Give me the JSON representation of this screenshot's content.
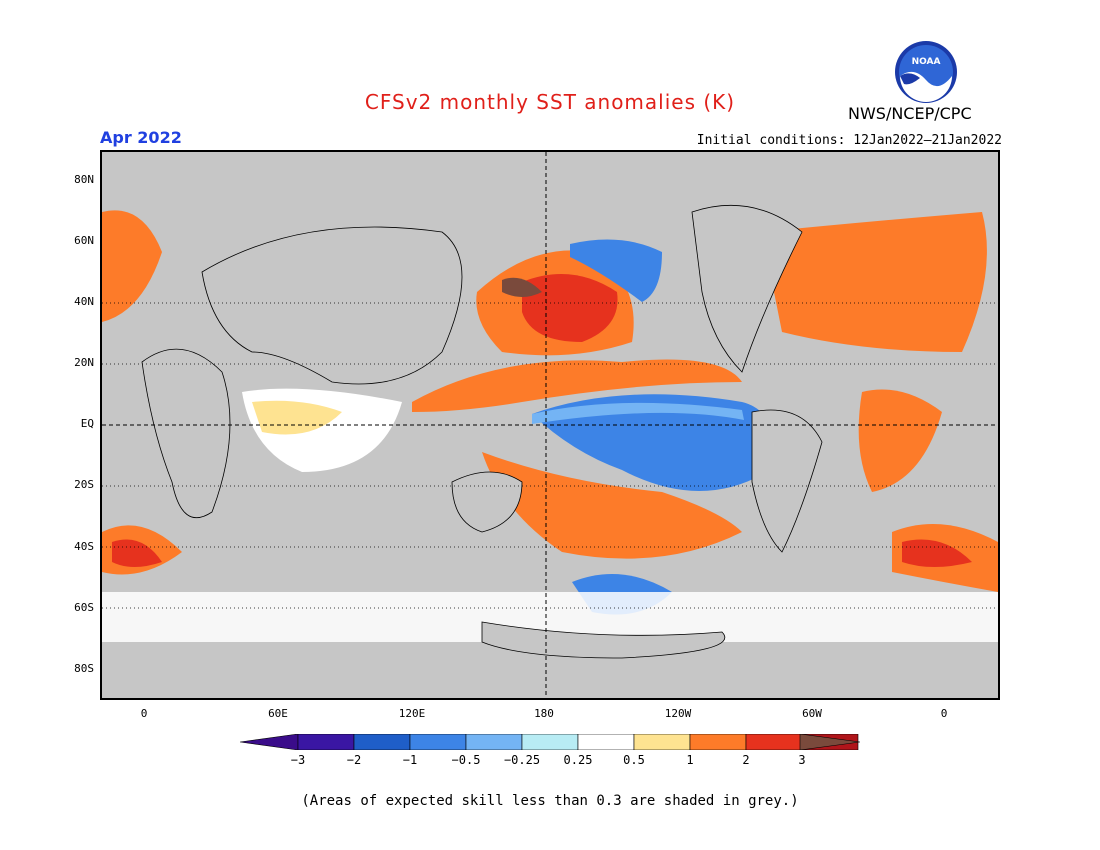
{
  "title": "CFSv2 monthly SST anomalies (K)",
  "forecast_month": "Apr 2022",
  "initial_conditions": "Initial conditions: 12Jan2022–21Jan2022",
  "organization": "NWS/NCEP/CPC",
  "logo_text": "NOAA",
  "lat_labels": [
    "80N",
    "60N",
    "40N",
    "20N",
    "EQ",
    "20S",
    "40S",
    "60S",
    "80S"
  ],
  "lon_labels": [
    "0",
    "60E",
    "120E",
    "180",
    "120W",
    "60W",
    "0"
  ],
  "colorbar": {
    "ticks": [
      "−3",
      "−2",
      "−1",
      "−0.5",
      "−0.25",
      "0.25",
      "0.5",
      "1",
      "2",
      "3"
    ],
    "colors": [
      "#3a16a3",
      "#1f5ec8",
      "#3d84e6",
      "#74b4f4",
      "#b8ecf4",
      "#ffffff",
      "#fee391",
      "#fd7b29",
      "#e6321e",
      "#b0151a"
    ],
    "under_color": "#3a0c8a",
    "over_color": "#7a4a3c"
  },
  "skill_mask_color": "#c6c6c6",
  "footer": "(Areas of expected skill less than 0.3 are shaded in grey.)"
}
